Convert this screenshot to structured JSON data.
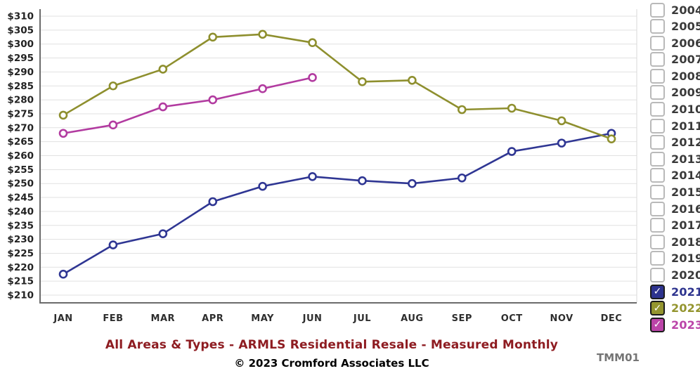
{
  "title": {
    "text": "All Areas & Types - ARMLS Residential Resale - Measured Monthly",
    "color": "#8e1c21"
  },
  "footer": {
    "text": "© 2023 Cromford Associates LLC"
  },
  "watermark": "TMM01",
  "legend": {
    "years": [
      "2004",
      "2005",
      "2006",
      "2007",
      "2008",
      "2009",
      "2010",
      "2011",
      "2012",
      "2013",
      "2014",
      "2015",
      "2016",
      "2017",
      "2018",
      "2019",
      "2020",
      "2021",
      "2022",
      "2023"
    ],
    "checked": {
      "2021": "#2d338e",
      "2022": "#94952f",
      "2023": "#bb44a8"
    },
    "check_icon": "✓",
    "unchecked_label_color": "#3a3a3a"
  },
  "chart_data": {
    "type": "line",
    "categories": [
      "JAN",
      "FEB",
      "MAR",
      "APR",
      "MAY",
      "JUN",
      "JUL",
      "AUG",
      "SEP",
      "OCT",
      "NOV",
      "DEC"
    ],
    "series": [
      {
        "name": "2021",
        "color": "#2f3693",
        "values": [
          217.5,
          228,
          232,
          243.5,
          249,
          252.5,
          251,
          250,
          252,
          261.5,
          264.5,
          268
        ]
      },
      {
        "name": "2022",
        "color": "#8e8f2e",
        "values": [
          274.5,
          285,
          291,
          302.5,
          303.5,
          300.5,
          286.5,
          287,
          276.5,
          277,
          272.5,
          266
        ]
      },
      {
        "name": "2023",
        "color": "#b23ba0",
        "values": [
          268,
          271,
          277.5,
          280,
          284,
          288,
          null,
          null,
          null,
          null,
          null,
          null
        ]
      }
    ],
    "title": "All Areas & Types - ARMLS Residential Resale - Measured Monthly",
    "xlabel": "",
    "ylabel": "",
    "ylim": [
      210,
      310
    ],
    "ytick_step": 5,
    "yticklabel_prefix": "$",
    "grid": true,
    "grid_color": "#e1e1e1",
    "axis_color": "#6b6b6b",
    "tick_label_color": "#222222",
    "legend_position": "right",
    "marker": "open-circle"
  }
}
